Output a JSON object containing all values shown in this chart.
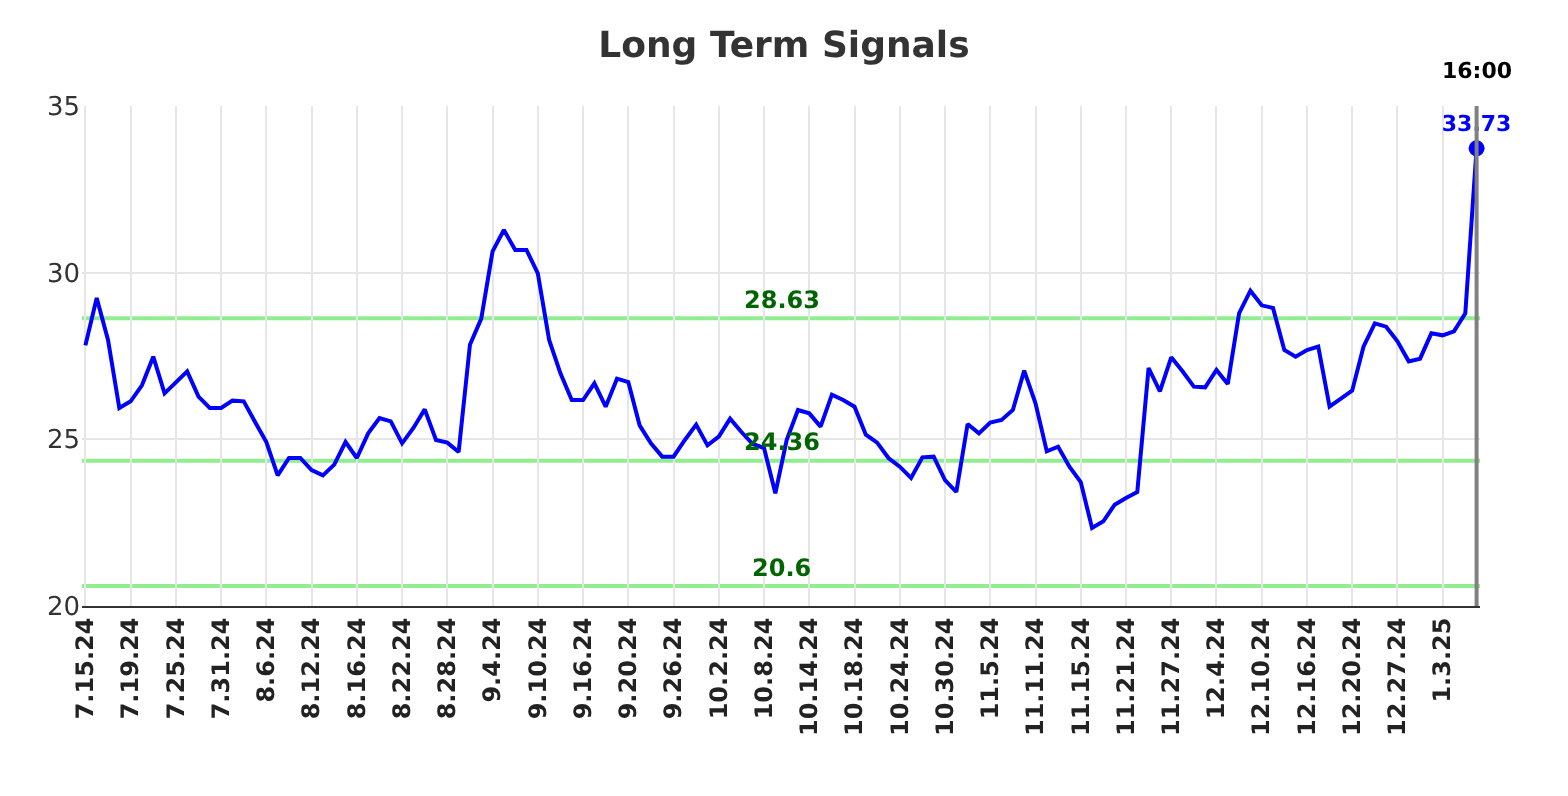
{
  "chart_data": {
    "type": "line",
    "title": "Long Term Signals",
    "categories": [
      "7.15.24",
      null,
      null,
      null,
      "7.19.24",
      null,
      null,
      null,
      "7.25.24",
      null,
      null,
      null,
      "7.31.24",
      null,
      null,
      null,
      "8.6.24",
      null,
      null,
      null,
      "8.12.24",
      null,
      null,
      null,
      "8.16.24",
      null,
      null,
      null,
      "8.22.24",
      null,
      null,
      null,
      "8.28.24",
      null,
      null,
      null,
      "9.4.24",
      null,
      null,
      null,
      "9.10.24",
      null,
      null,
      null,
      "9.16.24",
      null,
      null,
      null,
      "9.20.24",
      null,
      null,
      null,
      "9.26.24",
      null,
      null,
      null,
      "10.2.24",
      null,
      null,
      null,
      "10.8.24",
      null,
      null,
      null,
      "10.14.24",
      null,
      null,
      null,
      "10.18.24",
      null,
      null,
      null,
      "10.24.24",
      null,
      null,
      null,
      "10.30.24",
      null,
      null,
      null,
      "11.5.24",
      null,
      null,
      null,
      "11.11.24",
      null,
      null,
      null,
      "11.15.24",
      null,
      null,
      null,
      "11.21.24",
      null,
      null,
      null,
      "11.27.24",
      null,
      null,
      null,
      "12.4.24",
      null,
      null,
      null,
      "12.10.24",
      null,
      null,
      null,
      "12.16.24",
      null,
      null,
      null,
      "12.20.24",
      null,
      null,
      null,
      "12.27.24",
      null,
      null,
      null,
      "1.3.25",
      null,
      null,
      null
    ],
    "series": [
      {
        "color": "#0000ff",
        "marker": "none",
        "values": [
          27.82,
          29.24,
          27.98,
          25.94,
          26.14,
          26.62,
          27.48,
          26.38,
          26.71,
          27.04,
          26.28,
          25.94,
          25.94,
          26.16,
          26.14,
          25.52,
          24.92,
          23.92,
          24.44,
          24.44,
          24.08,
          23.92,
          24.24,
          24.92,
          24.44,
          25.18,
          25.64,
          25.54,
          24.88,
          25.34,
          25.9,
          24.98,
          24.9,
          24.62,
          27.84,
          28.62,
          30.64,
          31.28,
          30.68,
          30.68,
          29.98,
          27.98,
          26.98,
          26.18,
          26.18,
          26.68,
          25.98,
          26.82,
          26.72,
          25.42,
          24.88,
          24.48,
          24.48,
          24.98,
          25.44,
          24.82,
          25.08,
          25.62,
          25.22,
          24.86,
          24.74,
          23.38,
          24.98,
          25.88,
          25.78,
          25.38,
          26.34,
          26.18,
          25.98,
          25.14,
          24.9,
          24.44,
          24.18,
          23.84,
          24.46,
          24.48,
          23.78,
          23.42,
          25.46,
          25.18,
          25.5,
          25.58,
          25.88,
          27.06,
          26.08,
          24.64,
          24.78,
          24.18,
          23.72,
          22.34,
          22.54,
          23.04,
          23.24,
          23.42,
          27.14,
          26.44,
          27.46,
          27.04,
          26.58,
          26.56,
          27.08,
          26.66,
          28.78,
          29.46,
          29.02,
          28.94,
          27.68,
          27.48,
          27.68,
          27.78,
          25.98,
          26.22,
          26.46,
          27.78,
          28.48,
          28.38,
          27.94,
          27.34,
          27.42,
          28.18,
          28.12,
          28.24,
          28.78,
          33.73
        ]
      },
      {
        "type": "scatter",
        "color": "#0000ff",
        "marker": "circle",
        "values": [
          null,
          null,
          null,
          null,
          null,
          null,
          null,
          null,
          null,
          null,
          null,
          null,
          null,
          null,
          null,
          null,
          null,
          null,
          null,
          null,
          null,
          null,
          null,
          null,
          null,
          null,
          null,
          null,
          null,
          null,
          null,
          null,
          null,
          null,
          null,
          null,
          null,
          null,
          null,
          null,
          null,
          null,
          null,
          null,
          null,
          null,
          null,
          null,
          null,
          null,
          null,
          null,
          null,
          null,
          null,
          null,
          null,
          null,
          null,
          null,
          null,
          null,
          null,
          null,
          null,
          null,
          null,
          null,
          null,
          null,
          null,
          null,
          null,
          null,
          null,
          null,
          null,
          null,
          null,
          null,
          null,
          null,
          null,
          null,
          null,
          null,
          null,
          null,
          null,
          null,
          null,
          null,
          null,
          null,
          null,
          null,
          null,
          null,
          null,
          null,
          null,
          null,
          null,
          null,
          null,
          null,
          null,
          null,
          null,
          null,
          null,
          null,
          null,
          null,
          null,
          null,
          null,
          null,
          null,
          null,
          null,
          null,
          null,
          33.73
        ],
        "value_labels": [
          null,
          null,
          null,
          null,
          null,
          null,
          null,
          null,
          null,
          null,
          null,
          null,
          null,
          null,
          null,
          null,
          null,
          null,
          null,
          null,
          null,
          null,
          null,
          null,
          null,
          null,
          null,
          null,
          null,
          null,
          null,
          null,
          null,
          null,
          null,
          null,
          null,
          null,
          null,
          null,
          null,
          null,
          null,
          null,
          null,
          null,
          null,
          null,
          null,
          null,
          null,
          null,
          null,
          null,
          null,
          null,
          null,
          null,
          null,
          null,
          null,
          null,
          null,
          null,
          null,
          null,
          null,
          null,
          null,
          null,
          null,
          null,
          null,
          null,
          null,
          null,
          null,
          null,
          null,
          null,
          null,
          null,
          null,
          null,
          null,
          null,
          null,
          null,
          null,
          null,
          null,
          null,
          null,
          null,
          null,
          null,
          null,
          null,
          null,
          null,
          null,
          null,
          null,
          null,
          null,
          null,
          null,
          null,
          null,
          null,
          null,
          null,
          null,
          null,
          null,
          null,
          null,
          null,
          null,
          null,
          null,
          null,
          null,
          "33.73"
        ]
      }
    ],
    "annotations": [
      "16:00"
    ],
    "ref_lines": [
      {
        "axis": "y",
        "value": 28.63,
        "label": "28.63",
        "color": "#90ee90"
      },
      {
        "axis": "y",
        "value": 24.36,
        "label": "24.36",
        "color": "#90ee90"
      },
      {
        "axis": "y",
        "value": 20.6,
        "label": "20.6",
        "color": "#90ee90"
      }
    ],
    "ylim": [
      20,
      35
    ],
    "yticks": [
      20,
      25,
      30,
      35
    ],
    "grid": true
  }
}
